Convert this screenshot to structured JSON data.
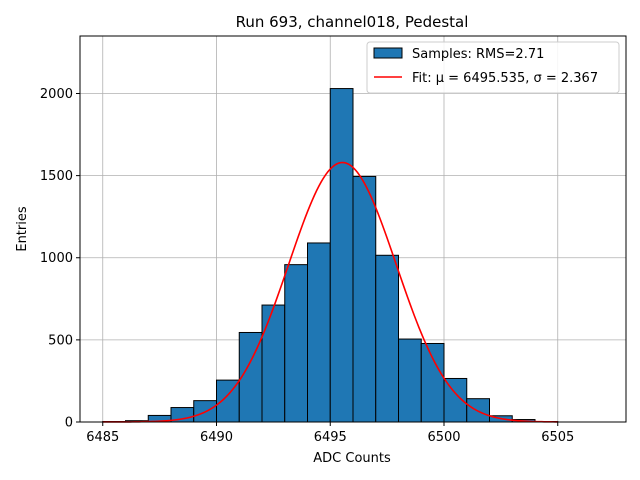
{
  "chart_data": {
    "type": "histogram",
    "title": "Run 693, channel018, Pedestal",
    "xlabel": "ADC Counts",
    "ylabel": "Entries",
    "xlim": [
      6484.0,
      6508.0
    ],
    "ylim": [
      0,
      2350
    ],
    "xticks": [
      6485,
      6490,
      6495,
      6500,
      6505
    ],
    "yticks": [
      0,
      500,
      1000,
      1500,
      2000
    ],
    "grid": true,
    "legend_position": "top-right",
    "bin_width": 1,
    "bins": [
      {
        "left": 6485,
        "count": 3
      },
      {
        "left": 6486,
        "count": 8
      },
      {
        "left": 6487,
        "count": 40
      },
      {
        "left": 6488,
        "count": 88
      },
      {
        "left": 6489,
        "count": 130
      },
      {
        "left": 6490,
        "count": 255
      },
      {
        "left": 6491,
        "count": 545
      },
      {
        "left": 6492,
        "count": 712
      },
      {
        "left": 6493,
        "count": 958
      },
      {
        "left": 6494,
        "count": 1090
      },
      {
        "left": 6495,
        "count": 2030
      },
      {
        "left": 6496,
        "count": 1495
      },
      {
        "left": 6497,
        "count": 1015
      },
      {
        "left": 6498,
        "count": 505
      },
      {
        "left": 6499,
        "count": 478
      },
      {
        "left": 6500,
        "count": 265
      },
      {
        "left": 6501,
        "count": 142
      },
      {
        "left": 6502,
        "count": 38
      },
      {
        "left": 6503,
        "count": 15
      },
      {
        "left": 6504,
        "count": 3
      }
    ],
    "series": [
      {
        "name": "Samples: RMS=2.71",
        "kind": "histogram",
        "color": "#1f77b4",
        "edgecolor": "#000000"
      },
      {
        "name": "Fit: μ = 6495.535, σ = 2.367",
        "kind": "gaussian",
        "color": "#ff0000",
        "mu": 6495.535,
        "sigma": 2.367,
        "amplitude": 1580,
        "x_range": [
          6485,
          6505
        ]
      }
    ]
  }
}
